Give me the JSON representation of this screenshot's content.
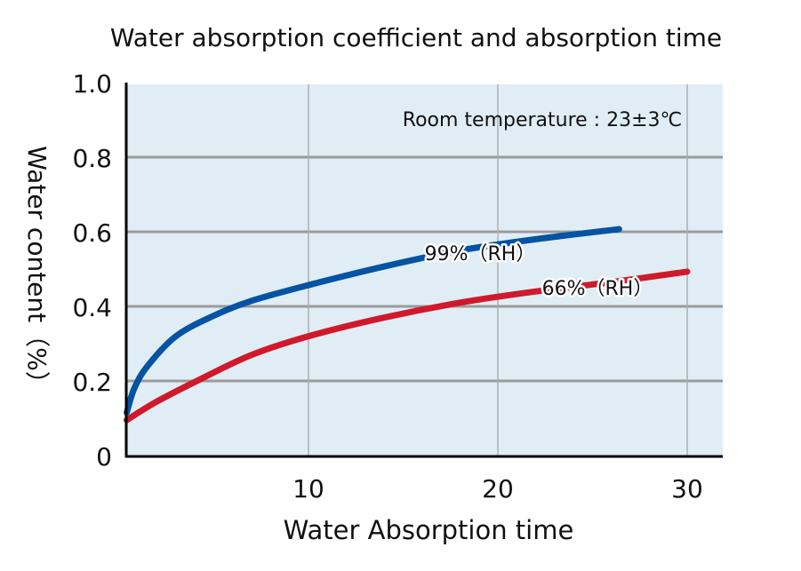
{
  "chart_data": {
    "type": "line",
    "title": "Water absorption coefficient and absorption time",
    "xlabel": "Water Absorption time",
    "ylabel": "Water content（%）",
    "annotation": "Room temperature : 23±3℃",
    "xlim": [
      0,
      32
    ],
    "ylim": [
      0,
      1.0
    ],
    "xticks": [
      10,
      20,
      30
    ],
    "yticks": [
      0,
      0.2,
      0.4,
      0.6,
      0.8,
      1.0
    ],
    "ytick_labels": [
      "0",
      "0.2",
      "0.4",
      "0.6",
      "0.8",
      "1.0"
    ],
    "grid": true,
    "series": [
      {
        "name": "99%（RH）",
        "color": "#0553a3",
        "x": [
          0.4,
          0.8,
          1.5,
          3,
          5,
          7,
          10,
          14,
          18,
          22,
          26.4
        ],
        "y": [
          0.115,
          0.18,
          0.24,
          0.32,
          0.375,
          0.415,
          0.457,
          0.507,
          0.55,
          0.58,
          0.607
        ]
      },
      {
        "name": "66%（RH）",
        "color": "#d0192b",
        "x": [
          0.4,
          2,
          4.5,
          7,
          10,
          14,
          18,
          22,
          26,
          30
        ],
        "y": [
          0.095,
          0.145,
          0.21,
          0.27,
          0.32,
          0.37,
          0.41,
          0.44,
          0.465,
          0.493
        ]
      }
    ]
  }
}
